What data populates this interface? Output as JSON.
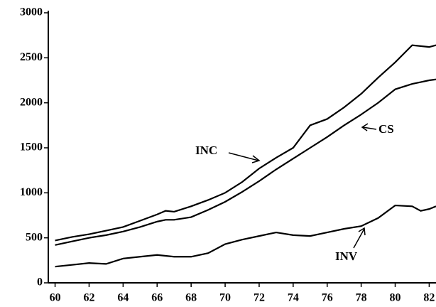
{
  "chart_data": {
    "type": "line",
    "x": [
      60,
      61,
      62,
      63,
      64,
      65,
      66,
      66.5,
      67,
      68,
      69,
      70,
      71,
      72,
      73,
      74,
      75,
      76,
      77,
      78,
      79,
      80,
      81,
      81.5,
      82,
      82.4
    ],
    "series": [
      {
        "name": "INC",
        "color": "#000000",
        "values": [
          470,
          510,
          540,
          580,
          620,
          690,
          760,
          800,
          790,
          850,
          920,
          1000,
          1120,
          1270,
          1390,
          1500,
          1750,
          1820,
          1950,
          2100,
          2280,
          2450,
          2640,
          2630,
          2620,
          2640
        ]
      },
      {
        "name": "CS",
        "color": "#000000",
        "values": [
          420,
          460,
          500,
          530,
          570,
          620,
          680,
          700,
          700,
          730,
          810,
          900,
          1010,
          1130,
          1260,
          1380,
          1500,
          1620,
          1750,
          1870,
          2000,
          2150,
          2210,
          2230,
          2250,
          2260
        ]
      },
      {
        "name": "INV",
        "color": "#000000",
        "values": [
          180,
          200,
          220,
          210,
          270,
          290,
          310,
          300,
          290,
          290,
          330,
          430,
          480,
          520,
          560,
          530,
          520,
          560,
          600,
          630,
          720,
          860,
          850,
          800,
          820,
          850
        ]
      }
    ],
    "annotations": [
      "INC",
      "CS",
      "INV"
    ],
    "xlim": [
      59.6,
      82.4
    ],
    "ylim": [
      0,
      3000
    ],
    "xticks": [
      60,
      62,
      64,
      66,
      68,
      70,
      72,
      74,
      76,
      78,
      80,
      82
    ],
    "yticks": [
      0,
      500,
      1000,
      1500,
      2000,
      2500,
      3000
    ]
  }
}
